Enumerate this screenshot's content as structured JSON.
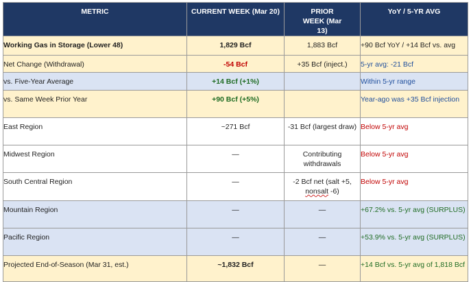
{
  "headers": {
    "metric": "METRIC",
    "current": "CURRENT WEEK (Mar 20)",
    "prior": "PRIOR WEEK (Mar 13)",
    "yoy": "YoY / 5-YR AVG"
  },
  "rows": [
    {
      "metric": "Working Gas in Storage (Lower 48)",
      "current": "1,829 Bcf",
      "prior": "1,883 Bcf",
      "yoy": "+90 Bcf YoY / +14 Bcf vs. avg"
    },
    {
      "metric": "Net Change (Withdrawal)",
      "current": "-54 Bcf",
      "prior": "+35 Bcf (inject.)",
      "yoy": "5-yr avg: -21 Bcf"
    },
    {
      "metric": "vs. Five-Year Average",
      "current": "+14 Bcf (+1%)",
      "prior": "",
      "yoy": "Within 5-yr range"
    },
    {
      "metric": "vs. Same Week Prior Year",
      "current": "+90 Bcf (+5%)",
      "prior": "",
      "yoy": "Year-ago was +35 Bcf injection"
    },
    {
      "metric": "East Region",
      "current": "~271 Bcf",
      "prior": "-31 Bcf (largest draw)",
      "yoy": "Below 5-yr avg"
    },
    {
      "metric": "Midwest Region",
      "current": "—",
      "prior": "Contributing withdrawals",
      "yoy": "Below 5-yr avg"
    },
    {
      "metric": "South Central Region",
      "current": "—",
      "prior_line1": "-2 Bcf net (salt +5,",
      "prior_line2_word": "nonsalt",
      "prior_line2_rest": " -6)",
      "yoy": "Below 5-yr avg"
    },
    {
      "metric": "Mountain Region",
      "current": "—",
      "prior": "—",
      "yoy": "+67.2% vs. 5-yr avg (SURPLUS)"
    },
    {
      "metric": "Pacific Region",
      "current": "—",
      "prior": "—",
      "yoy": "+53.9% vs. 5-yr avg (SURPLUS)"
    },
    {
      "metric": "Projected End-of-Season (Mar 31, est.)",
      "current": "~1,832 Bcf",
      "prior": "—",
      "yoy": "+14 Bcf vs. 5-yr avg of 1,818 Bcf"
    }
  ],
  "colors": {
    "header_bg": "#1f3864",
    "gold_row": "#fff2cc",
    "blue_row": "#dae3f3",
    "negative": "#c00000",
    "positive": "#1e6b22",
    "neutral_note": "#1f4e9c"
  }
}
